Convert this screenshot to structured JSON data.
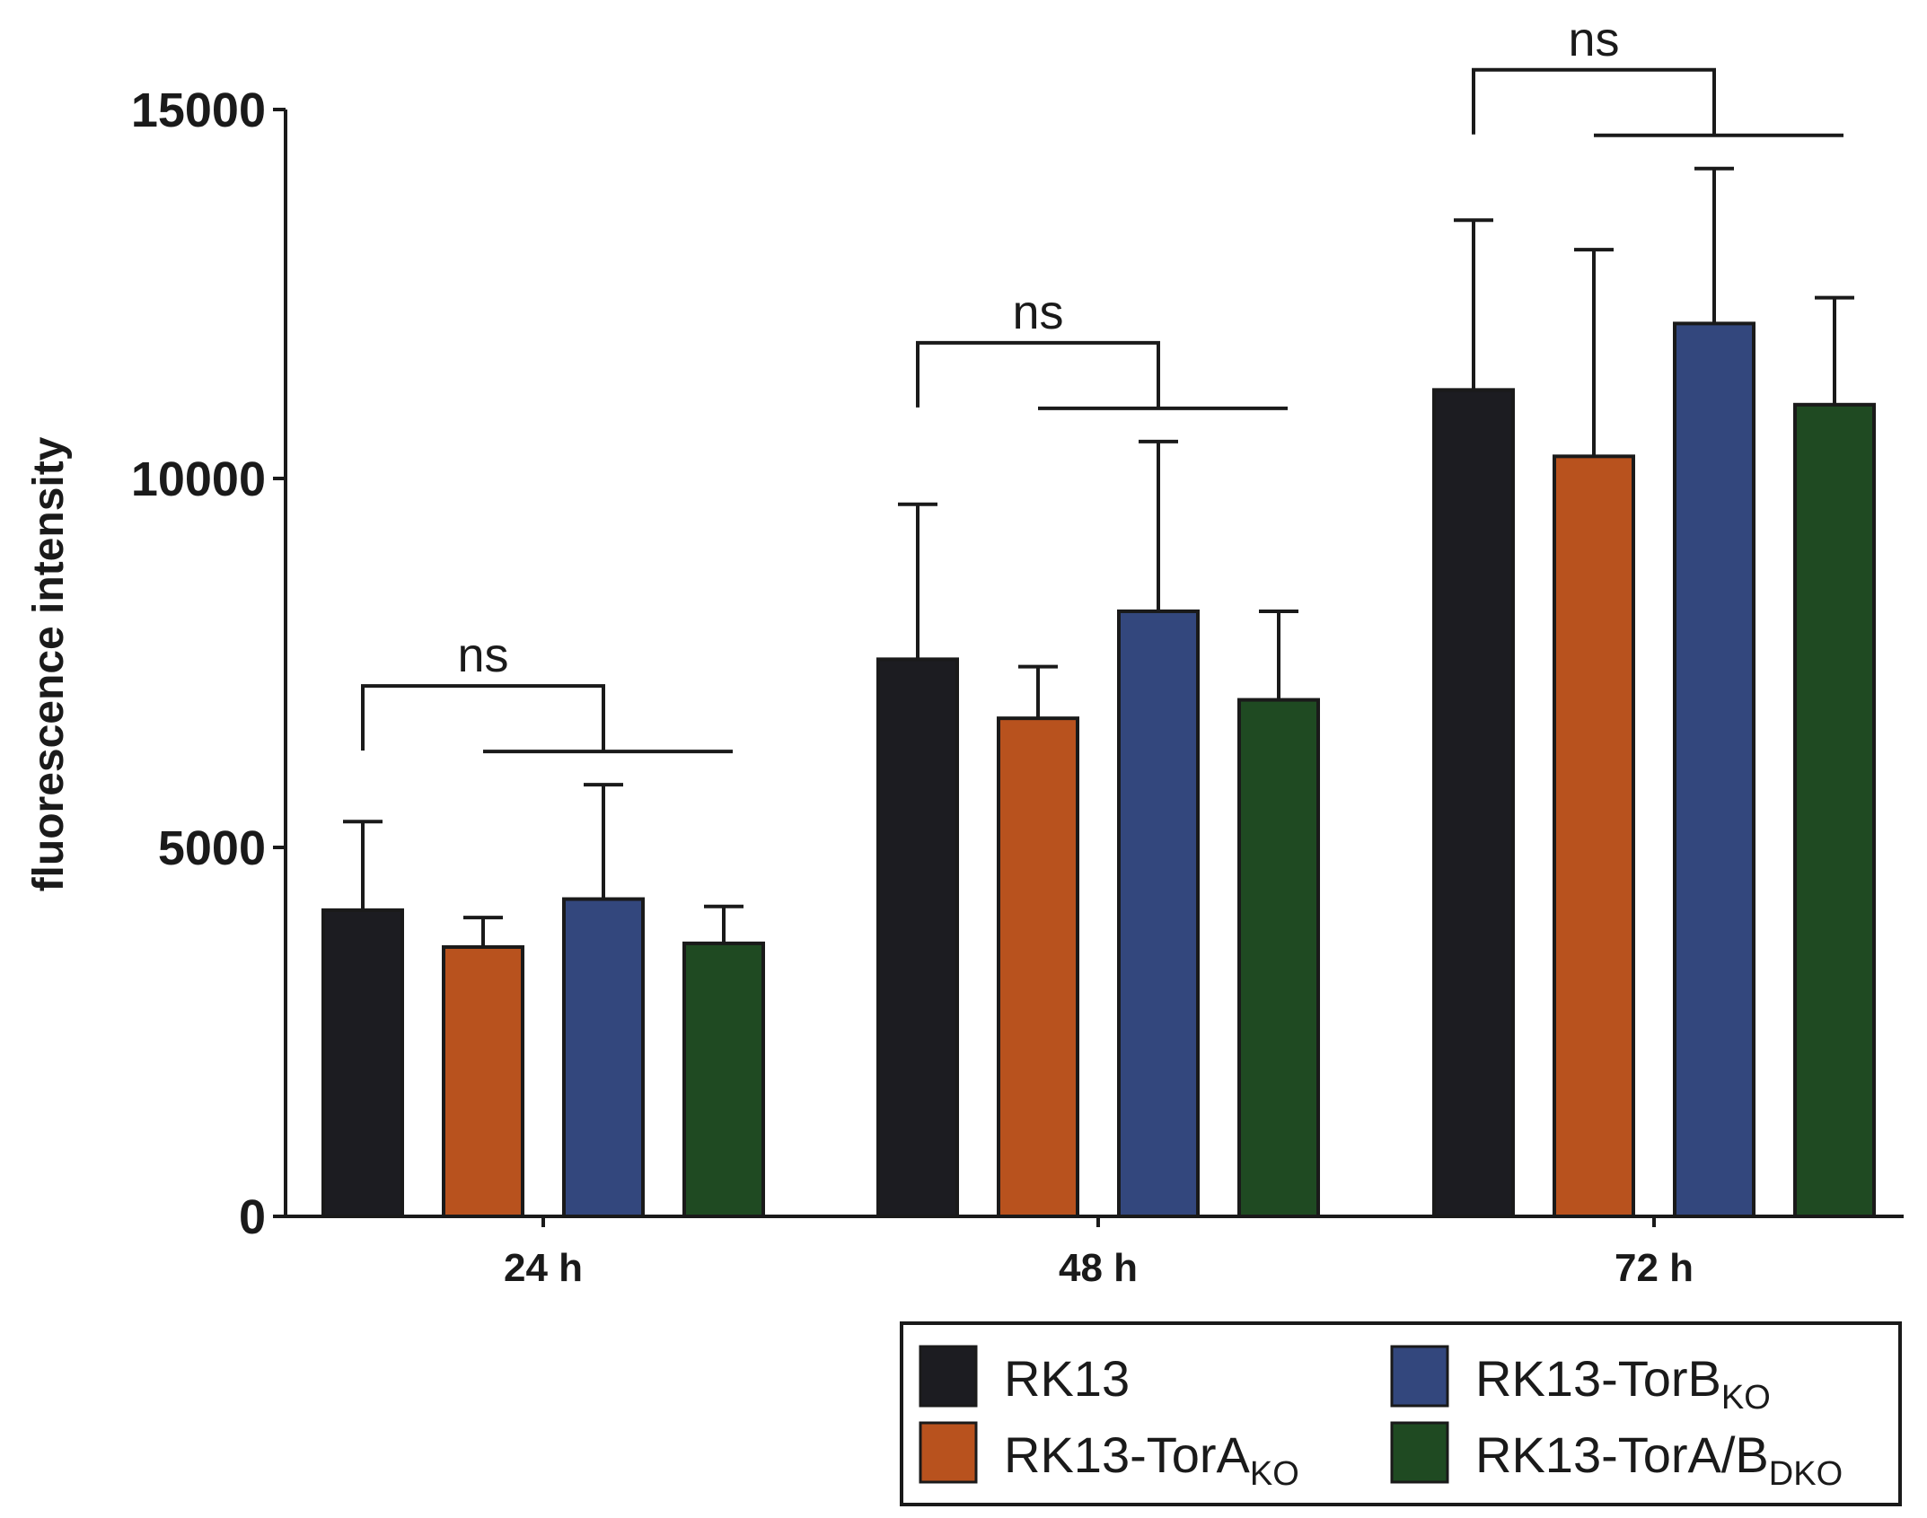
{
  "chart_data": {
    "type": "bar",
    "title": "",
    "xlabel": "",
    "ylabel": "fluorescence intensity",
    "ylim": [
      0,
      15000
    ],
    "yticks": [
      0,
      5000,
      10000,
      15000
    ],
    "ytick_labels": [
      "0",
      "5000",
      "10000",
      "15000"
    ],
    "categories": [
      "24 h",
      "48 h",
      "72 h"
    ],
    "series": [
      {
        "name": "RK13",
        "label_main": "RK13",
        "label_sub": "",
        "color": "#1c1c21",
        "values": [
          4150,
          7550,
          11200
        ],
        "errors": [
          1200,
          2100,
          2300
        ]
      },
      {
        "name": "RK13-TorA KO",
        "label_main": "RK13-TorA",
        "label_sub": "KO",
        "color": "#b8521e",
        "values": [
          3650,
          6750,
          10300
        ],
        "errors": [
          400,
          700,
          2800
        ]
      },
      {
        "name": "RK13-TorB KO",
        "label_main": "RK13-TorB",
        "label_sub": "KO",
        "color": "#33477d",
        "values": [
          4300,
          8200,
          12100
        ],
        "errors": [
          1550,
          2300,
          2100
        ]
      },
      {
        "name": "RK13-TorA/B DKO",
        "label_main": "RK13-TorA/B",
        "label_sub": "DKO",
        "color": "#1f4a22",
        "values": [
          3700,
          7000,
          11000
        ],
        "errors": [
          500,
          1200,
          1450
        ]
      }
    ],
    "annotations": [
      "ns",
      "ns",
      "ns"
    ],
    "legend": "bottom-right",
    "grid": false
  }
}
